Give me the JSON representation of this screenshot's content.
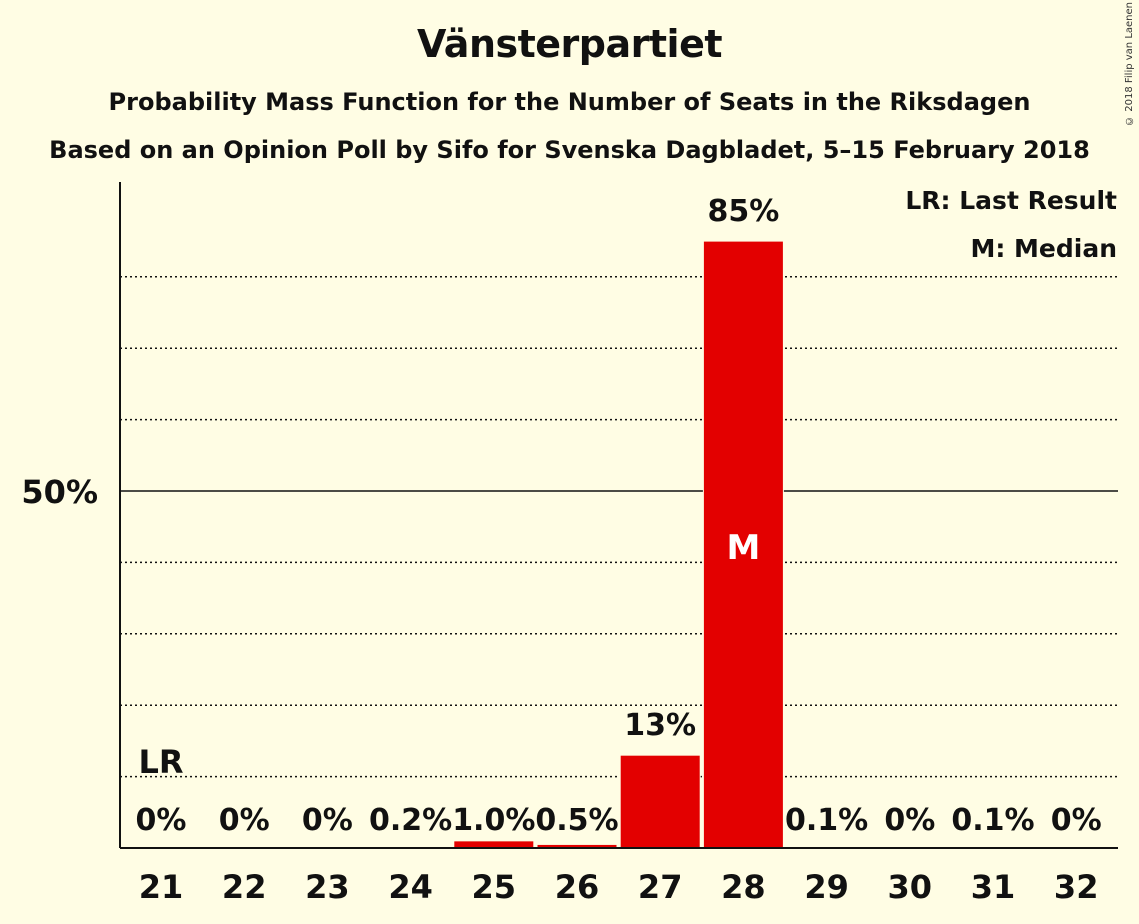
{
  "header": {
    "title": "Vänsterpartiet",
    "subtitle": "Probability Mass Function for the Number of Seats in the Riksdagen",
    "subtitle2": "Based on an Opinion Poll by Sifo for Svenska Dagbladet, 5–15 February 2018",
    "copyright": "© 2018 Filip van Laenen"
  },
  "legend": {
    "last_result": "LR: Last Result",
    "median": "M: Median"
  },
  "chart_data": {
    "type": "bar",
    "title": "Vänsterpartiet",
    "categories": [
      "21",
      "22",
      "23",
      "24",
      "25",
      "26",
      "27",
      "28",
      "29",
      "30",
      "31",
      "32"
    ],
    "values": [
      0,
      0,
      0,
      0.2,
      1.0,
      0.5,
      13,
      85,
      0.1,
      0,
      0.1,
      0
    ],
    "labels": [
      "0%",
      "0%",
      "0%",
      "0.2%",
      "1.0%",
      "0.5%",
      "13%",
      "85%",
      "0.1%",
      "0%",
      "0.1%",
      "0%"
    ],
    "ylim": [
      0,
      93
    ],
    "ytick_label": "50%",
    "ytick_value": 50,
    "gridlines": [
      10,
      20,
      30,
      40,
      60,
      70,
      80
    ],
    "last_result_seat": "21",
    "last_result_label": "LR",
    "median_seat": "28",
    "median_label": "M",
    "bar_color": "#e30000"
  }
}
